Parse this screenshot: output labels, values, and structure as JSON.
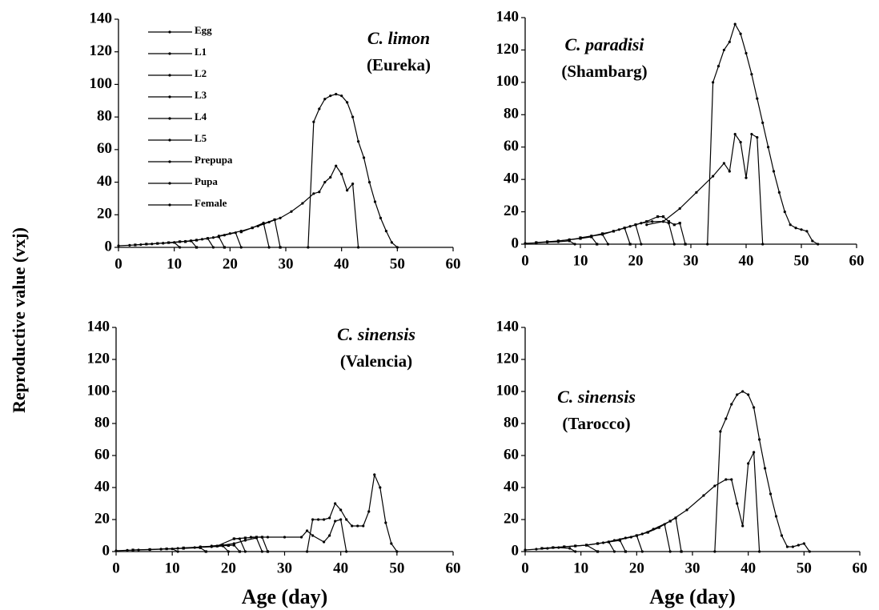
{
  "ylabel": "Reproductive value (vxj)",
  "chart_data": [
    {
      "type": "line",
      "title": "C. limon",
      "subtitle": "(Eureka)",
      "color": "#000000",
      "legend": "upper left",
      "xlim": [
        0,
        60
      ],
      "ylim": [
        0,
        140
      ],
      "xticks": [
        0,
        10,
        20,
        30,
        40,
        50,
        60
      ],
      "yticks": [
        0,
        20,
        40,
        60,
        80,
        100,
        120,
        140
      ],
      "series": [
        {
          "name": "Egg",
          "x": [
            0,
            2,
            4,
            6,
            8,
            10,
            11
          ],
          "values": [
            1,
            1.3,
            1.7,
            2.1,
            2.6,
            3,
            0
          ]
        },
        {
          "name": "L1",
          "x": [
            3,
            5,
            7,
            9,
            11,
            13,
            14
          ],
          "values": [
            1.5,
            2,
            2.4,
            2.9,
            3.5,
            4,
            0
          ]
        },
        {
          "name": "L2",
          "x": [
            8,
            10,
            12,
            14,
            16,
            17
          ],
          "values": [
            2.5,
            3,
            3.7,
            4.5,
            5.5,
            0
          ]
        },
        {
          "name": "L3",
          "x": [
            12,
            14,
            16,
            18,
            19
          ],
          "values": [
            3.5,
            4.4,
            5.5,
            6.5,
            0
          ]
        },
        {
          "name": "L4",
          "x": [
            15,
            17,
            19,
            21,
            22
          ],
          "values": [
            5,
            6,
            7.5,
            9,
            0
          ]
        },
        {
          "name": "L5",
          "x": [
            18,
            20,
            22,
            24,
            26,
            27
          ],
          "values": [
            7,
            8.5,
            10,
            12,
            15,
            0
          ]
        },
        {
          "name": "Prepupa",
          "x": [
            22,
            24,
            26,
            28,
            29
          ],
          "values": [
            9.5,
            12,
            14.5,
            17,
            0
          ]
        },
        {
          "name": "Pupa",
          "x": [
            25,
            27,
            29,
            31,
            33,
            35,
            36,
            37,
            38,
            39,
            40,
            41,
            42,
            43
          ],
          "values": [
            13,
            15.5,
            18,
            22,
            27,
            33,
            34,
            40,
            43,
            50,
            45,
            35,
            39,
            0
          ]
        },
        {
          "name": "Female",
          "x": [
            34,
            35,
            36,
            37,
            38,
            39,
            40,
            41,
            42,
            43,
            44,
            45,
            46,
            47,
            48,
            49,
            50
          ],
          "values": [
            0,
            77,
            85,
            91,
            93,
            94,
            93,
            89,
            80,
            65,
            55,
            40,
            28,
            18,
            10,
            3,
            0
          ]
        }
      ]
    },
    {
      "type": "line",
      "title": "C. paradisi",
      "subtitle": "(Shambarg)",
      "color": "#000000",
      "xlim": [
        0,
        60
      ],
      "ylim": [
        0,
        140
      ],
      "xticks": [
        0,
        10,
        20,
        30,
        40,
        50,
        60
      ],
      "yticks": [
        0,
        20,
        40,
        60,
        80,
        100,
        120,
        140
      ],
      "series": [
        {
          "x": [
            0,
            2,
            4,
            6,
            8,
            9
          ],
          "values": [
            0.5,
            0.8,
            1.2,
            1.5,
            2,
            0
          ]
        },
        {
          "x": [
            2,
            4,
            6,
            8,
            10,
            12,
            13
          ],
          "values": [
            1,
            1.5,
            2,
            2.7,
            3.5,
            4.5,
            0
          ]
        },
        {
          "x": [
            6,
            8,
            10,
            12,
            14,
            15
          ],
          "values": [
            2,
            2.8,
            3.7,
            5,
            6,
            0
          ]
        },
        {
          "x": [
            10,
            12,
            14,
            16,
            18,
            19
          ],
          "values": [
            4,
            5,
            6.5,
            8,
            10,
            0
          ]
        },
        {
          "x": [
            14,
            16,
            18,
            20,
            21
          ],
          "values": [
            6,
            8,
            10,
            12,
            0
          ]
        },
        {
          "x": [
            17,
            19,
            21,
            23,
            25,
            26,
            27
          ],
          "values": [
            9,
            11,
            13,
            14,
            14,
            13,
            0
          ]
        },
        {
          "x": [
            20,
            22,
            24,
            25,
            26,
            27,
            28,
            29
          ],
          "values": [
            12,
            14,
            17,
            17,
            14,
            12,
            13,
            0
          ]
        },
        {
          "x": [
            22,
            25,
            28,
            31,
            34,
            36,
            37,
            38,
            39,
            40,
            41,
            42,
            43
          ],
          "values": [
            12,
            14,
            22,
            32,
            42,
            50,
            45,
            68,
            63,
            41,
            68,
            66,
            0
          ]
        },
        {
          "x": [
            33,
            34,
            35,
            36,
            37,
            38,
            39,
            40,
            41,
            42,
            43,
            44,
            45,
            46,
            47,
            48,
            49,
            50,
            51,
            52,
            53
          ],
          "values": [
            0,
            100,
            110,
            120,
            125,
            136,
            130,
            118,
            105,
            90,
            75,
            60,
            45,
            32,
            20,
            12,
            10,
            9,
            8,
            2,
            0
          ]
        }
      ]
    },
    {
      "type": "line",
      "title": "C. sinensis",
      "subtitle": "(Valencia)",
      "color": "#000000",
      "xlabel": "Age (day)",
      "xlim": [
        0,
        60
      ],
      "ylim": [
        0,
        140
      ],
      "xticks": [
        0,
        10,
        20,
        30,
        40,
        50,
        60
      ],
      "yticks": [
        0,
        20,
        40,
        60,
        80,
        100,
        120,
        140
      ],
      "series": [
        {
          "x": [
            0,
            2,
            4,
            6,
            8,
            10,
            11
          ],
          "values": [
            0.5,
            0.8,
            1,
            1.2,
            1.5,
            1.7,
            0
          ]
        },
        {
          "x": [
            3,
            6,
            9,
            12,
            15,
            16
          ],
          "values": [
            1,
            1.3,
            1.7,
            2,
            2.4,
            0
          ]
        },
        {
          "x": [
            8,
            11,
            14,
            17,
            19,
            20
          ],
          "values": [
            1.5,
            2,
            2.5,
            3,
            3.5,
            0
          ]
        },
        {
          "x": [
            12,
            15,
            18,
            20,
            21,
            22
          ],
          "values": [
            2.3,
            2.8,
            3.4,
            3.8,
            4,
            0
          ]
        },
        {
          "x": [
            15,
            18,
            21,
            22,
            23
          ],
          "values": [
            3,
            3.5,
            8,
            8,
            0
          ]
        },
        {
          "x": [
            17,
            19,
            21,
            23,
            25,
            26
          ],
          "values": [
            3.5,
            4,
            5,
            7,
            8.5,
            0
          ]
        },
        {
          "x": [
            21,
            23,
            25,
            26,
            27
          ],
          "values": [
            8,
            8.5,
            9,
            9,
            0
          ]
        },
        {
          "x": [
            24,
            27,
            30,
            33,
            34,
            35,
            37,
            38,
            39,
            40,
            41
          ],
          "values": [
            9,
            9,
            9,
            9,
            13,
            10,
            6,
            10,
            19,
            20,
            0
          ]
        },
        {
          "x": [
            34,
            35,
            36,
            37,
            38,
            39,
            40,
            41,
            42,
            43,
            44,
            45,
            46,
            47,
            48,
            49,
            50
          ],
          "values": [
            0,
            20,
            20,
            20,
            21,
            30,
            26,
            20,
            16,
            16,
            16,
            25,
            48,
            40,
            18,
            5,
            0
          ]
        }
      ]
    },
    {
      "type": "line",
      "title": "C. sinensis",
      "subtitle": "(Tarocco)",
      "color": "#000000",
      "xlabel": "Age (day)",
      "xlim": [
        0,
        60
      ],
      "ylim": [
        0,
        140
      ],
      "xticks": [
        0,
        10,
        20,
        30,
        40,
        50,
        60
      ],
      "yticks": [
        0,
        20,
        40,
        60,
        80,
        100,
        120,
        140
      ],
      "series": [
        {
          "x": [
            0,
            2,
            4,
            6,
            8,
            9
          ],
          "values": [
            1,
            1.5,
            2,
            2.5,
            2,
            0
          ]
        },
        {
          "x": [
            3,
            5,
            7,
            9,
            11,
            13
          ],
          "values": [
            2,
            2.5,
            3,
            3.5,
            4,
            0
          ]
        },
        {
          "x": [
            7,
            9,
            11,
            13,
            15,
            16
          ],
          "values": [
            3,
            3.5,
            4,
            5,
            6,
            0
          ]
        },
        {
          "x": [
            11,
            13,
            15,
            17,
            18
          ],
          "values": [
            4,
            5,
            6,
            7,
            0
          ]
        },
        {
          "x": [
            14,
            16,
            18,
            20,
            21
          ],
          "values": [
            5.5,
            7,
            8.5,
            10,
            0
          ]
        },
        {
          "x": [
            17,
            19,
            21,
            23,
            25,
            26
          ],
          "values": [
            7.5,
            9,
            11,
            14,
            17,
            0
          ]
        },
        {
          "x": [
            20,
            22,
            24,
            26,
            27,
            28
          ],
          "values": [
            10,
            12,
            15,
            19,
            21,
            0
          ]
        },
        {
          "x": [
            23,
            26,
            29,
            32,
            34,
            36,
            37,
            38,
            39,
            40,
            41,
            42
          ],
          "values": [
            14,
            19,
            26,
            35,
            41,
            45,
            45,
            30,
            16,
            55,
            62,
            0
          ]
        },
        {
          "x": [
            34,
            35,
            36,
            37,
            38,
            39,
            40,
            41,
            42,
            43,
            44,
            45,
            46,
            47,
            48,
            49,
            50,
            51
          ],
          "values": [
            0,
            75,
            83,
            92,
            98,
            100,
            98,
            90,
            70,
            52,
            36,
            22,
            10,
            3,
            3,
            4,
            5,
            0
          ]
        }
      ]
    }
  ]
}
